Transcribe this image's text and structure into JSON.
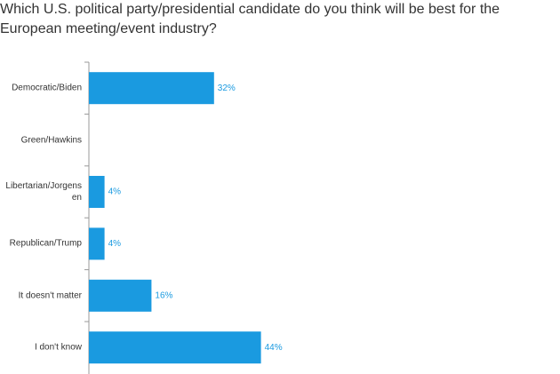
{
  "chart_data": {
    "type": "bar",
    "orientation": "horizontal",
    "title": "Which U.S. political party/presidential candidate do you think will be best for the European meeting/event industry?",
    "categories": [
      "Democratic/Biden",
      "Green/Hawkins",
      "Libertarian/Jorgensen",
      "Republican/Trump",
      "It doesn't matter",
      "I don't know"
    ],
    "values": [
      32,
      null,
      4,
      4,
      16,
      44
    ],
    "value_labels": [
      "32%",
      null,
      "4%",
      "4%",
      "16%",
      "44%"
    ],
    "color": "#1a9ae0"
  }
}
